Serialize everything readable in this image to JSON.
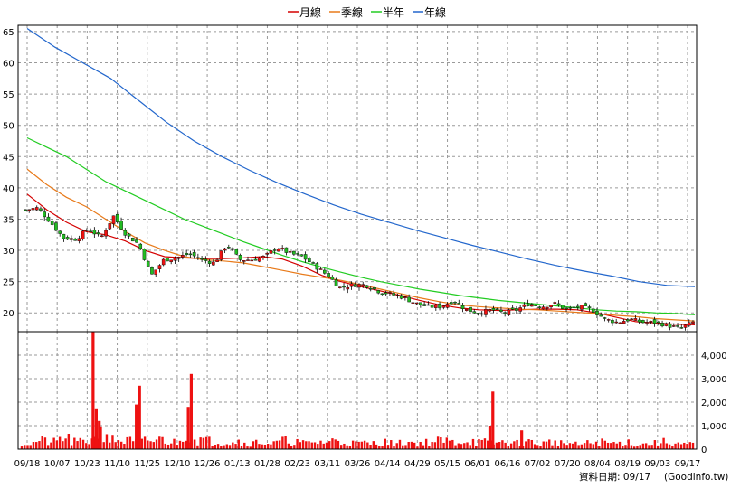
{
  "legend": [
    {
      "label": "月線",
      "color": "#d40000"
    },
    {
      "label": "季線",
      "color": "#e87a1a"
    },
    {
      "label": "半年",
      "color": "#22cc22"
    },
    {
      "label": "年線",
      "color": "#2266cc"
    }
  ],
  "footer": {
    "date_label": "資料日期: 09/17",
    "source": "(Goodinfo.tw)"
  },
  "chart_data": [
    {
      "type": "candlestick",
      "title": "",
      "ylim": [
        17,
        66
      ],
      "y_ticks": [
        20,
        25,
        30,
        35,
        40,
        45,
        50,
        55,
        60,
        65
      ],
      "x_ticks": [
        "09/18",
        "10/07",
        "10/23",
        "11/10",
        "11/25",
        "12/10",
        "12/26",
        "01/13",
        "01/28",
        "02/23",
        "03/11",
        "03/26",
        "04/14",
        "04/29",
        "05/15",
        "06/01",
        "06/16",
        "07/02",
        "07/20",
        "08/04",
        "08/19",
        "09/03",
        "09/17"
      ],
      "grid": true,
      "legend_position": "top-center",
      "up_color": "#ee1111",
      "down_color": "#22bb22",
      "close_anchors": [
        36.5,
        36.8,
        34.5,
        32.0,
        31.8,
        33.5,
        32.0,
        35.5,
        32.5,
        31.0,
        26.0,
        28.5,
        28.8,
        29.5,
        28.5,
        28.0,
        31.0,
        28.5,
        28.5,
        29.0,
        30.5,
        29.5,
        29.0,
        27.5,
        26.0,
        24.0,
        24.5,
        24.5,
        23.5,
        23.0,
        22.5,
        21.5,
        21.0,
        21.0,
        22.0,
        20.5,
        20.0,
        20.5,
        20.0,
        20.5,
        21.5,
        21.0,
        21.5,
        20.5,
        21.0,
        20.5,
        19.0,
        18.5,
        19.0,
        18.5,
        18.5,
        18.0,
        17.5,
        18.5
      ],
      "series": [
        {
          "name": "月線",
          "color": "#d40000",
          "values": [
            39.0,
            36.5,
            34.5,
            33.0,
            32.5,
            31.5,
            30.0,
            29.0,
            28.8,
            28.7,
            28.7,
            28.8,
            29.0,
            28.6,
            27.5,
            26.0,
            25.0,
            24.2,
            23.5,
            22.8,
            22.0,
            21.3,
            20.8,
            20.5,
            20.4,
            20.5,
            20.6,
            20.6,
            20.5,
            20.0,
            19.3,
            18.6,
            18.4,
            18.2,
            18.1
          ]
        },
        {
          "name": "季線",
          "color": "#e87a1a",
          "values": [
            43.0,
            40.5,
            38.5,
            37.0,
            35.0,
            33.0,
            31.2,
            30.0,
            29.0,
            28.5,
            28.3,
            28.0,
            27.4,
            26.8,
            26.2,
            25.7,
            25.2,
            24.5,
            23.8,
            23.1,
            22.4,
            21.8,
            21.3,
            21.0,
            20.8,
            20.6,
            20.5,
            20.3,
            20.1,
            19.9,
            19.6,
            19.4,
            19.1,
            18.9,
            18.7
          ]
        },
        {
          "name": "半年",
          "color": "#22cc22",
          "values": [
            48.0,
            46.5,
            45.0,
            43.0,
            41.0,
            39.5,
            38.0,
            36.5,
            35.0,
            33.8,
            32.6,
            31.4,
            30.3,
            29.2,
            28.2,
            27.3,
            26.5,
            25.7,
            25.0,
            24.4,
            23.8,
            23.3,
            22.8,
            22.4,
            22.0,
            21.7,
            21.4,
            21.1,
            20.8,
            20.5,
            20.3,
            20.2,
            20.0,
            19.9,
            19.7
          ]
        },
        {
          "name": "年線",
          "color": "#2266cc",
          "values": [
            65.5,
            62.5,
            60.0,
            57.5,
            54.0,
            50.5,
            47.5,
            45.0,
            42.8,
            40.8,
            39.0,
            37.3,
            35.8,
            34.5,
            33.2,
            32.0,
            30.8,
            29.7,
            28.6,
            27.6,
            26.7,
            25.9,
            25.0,
            24.4,
            24.2
          ]
        }
      ]
    },
    {
      "type": "bar",
      "title": "",
      "ylim": [
        0,
        5000
      ],
      "y_ticks": [
        "0",
        "1,000",
        "2,000",
        "3,000",
        "4,000"
      ],
      "color": "#ee1111",
      "baseline": [
        250,
        350,
        300,
        450,
        300,
        350,
        700,
        400,
        350,
        300,
        350,
        400,
        300,
        600,
        400,
        350,
        300,
        350,
        250,
        300,
        250,
        350,
        300,
        250,
        300,
        350,
        300,
        250,
        250,
        300,
        250,
        300,
        250,
        300,
        350,
        300,
        350,
        300,
        250,
        300,
        250,
        300,
        250,
        300,
        250,
        200,
        250,
        300,
        250,
        300,
        200,
        250,
        300,
        250,
        200
      ],
      "spikes": [
        {
          "x_frac": 0.1105,
          "value": 5000
        },
        {
          "x_frac": 0.1152,
          "value": 1700
        },
        {
          "x_frac": 0.1196,
          "value": 1200
        },
        {
          "x_frac": 0.1742,
          "value": 1900
        },
        {
          "x_frac": 0.179,
          "value": 2700
        },
        {
          "x_frac": 0.2508,
          "value": 1800
        },
        {
          "x_frac": 0.2552,
          "value": 3200
        },
        {
          "x_frac": 0.6997,
          "value": 2450
        },
        {
          "x_frac": 0.6953,
          "value": 1000
        },
        {
          "x_frac": 0.7422,
          "value": 800
        }
      ]
    }
  ]
}
